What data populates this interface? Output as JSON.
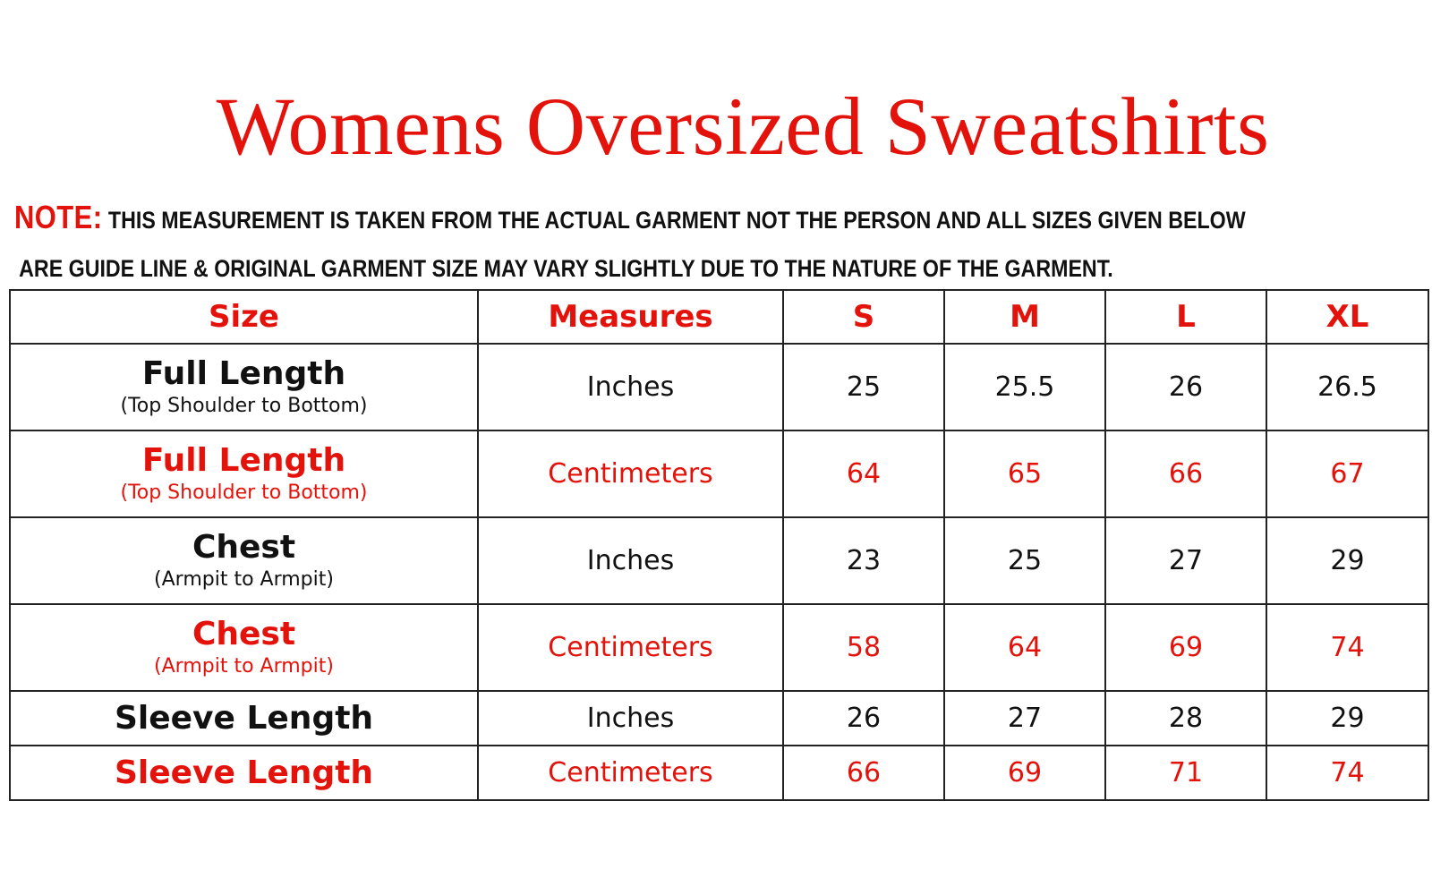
{
  "title": "Womens Oversized Sweatshirts",
  "note": {
    "label": "NOTE:",
    "line1": "THIS MEASUREMENT IS TAKEN FROM THE ACTUAL GARMENT NOT THE PERSON AND ALL SIZES GIVEN BELOW",
    "line2": "ARE GUIDE LINE & ORIGINAL GARMENT SIZE MAY VARY SLIGHTLY DUE TO THE NATURE OF THE GARMENT."
  },
  "colors": {
    "accent": "#e3120b",
    "text": "#111111"
  },
  "table": {
    "headers": [
      "Size",
      "Measures",
      "S",
      "M",
      "L",
      "XL"
    ],
    "rows": [
      {
        "label": "Full Length",
        "sublabel": "(Top Shoulder to Bottom)",
        "unit": "Inches",
        "values": [
          "25",
          "25.5",
          "26",
          "26.5"
        ]
      },
      {
        "label": "Full Length",
        "sublabel": "(Top Shoulder to Bottom)",
        "unit": "Centimeters",
        "values": [
          "64",
          "65",
          "66",
          "67"
        ]
      },
      {
        "label": "Chest",
        "sublabel": "(Armpit to Armpit)",
        "unit": "Inches",
        "values": [
          "23",
          "25",
          "27",
          "29"
        ]
      },
      {
        "label": "Chest",
        "sublabel": "(Armpit to Armpit)",
        "unit": "Centimeters",
        "values": [
          "58",
          "64",
          "69",
          "74"
        ]
      },
      {
        "label": "Sleeve Length",
        "sublabel": "",
        "unit": "Inches",
        "values": [
          "26",
          "27",
          "28",
          "29"
        ]
      },
      {
        "label": "Sleeve Length",
        "sublabel": "",
        "unit": "Centimeters",
        "values": [
          "66",
          "69",
          "71",
          "74"
        ]
      }
    ]
  }
}
